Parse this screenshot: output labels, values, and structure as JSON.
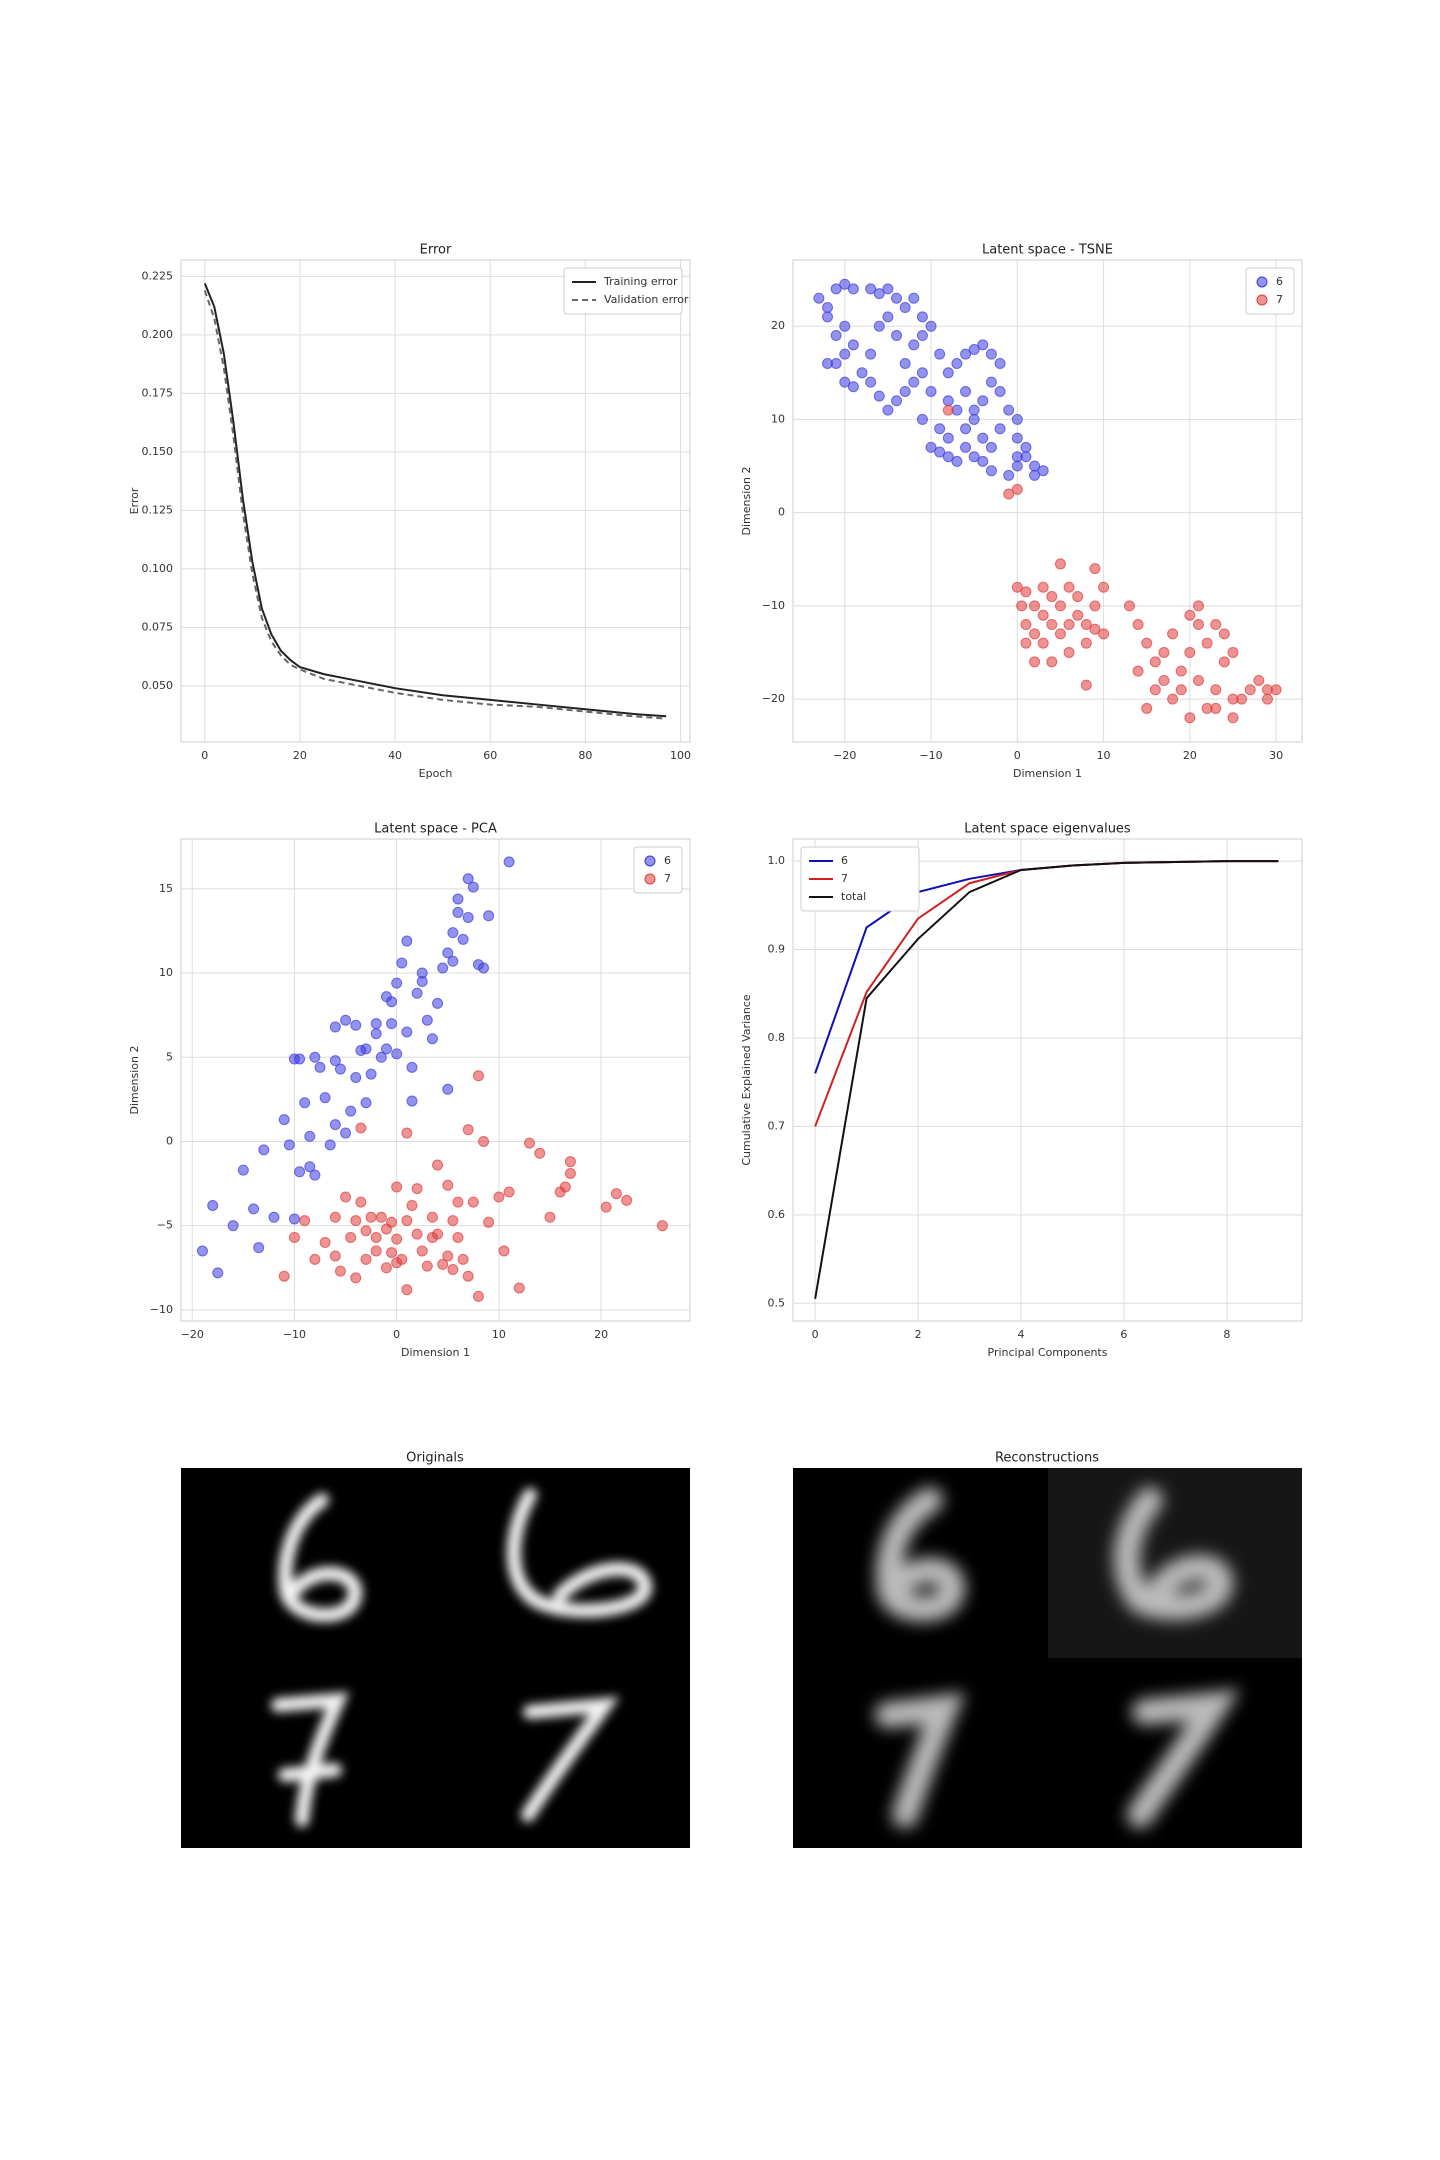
{
  "chart_data": [
    {
      "type": "line",
      "title": "Error",
      "xlabel": "Epoch",
      "ylabel": "Error",
      "x": [
        0,
        2,
        4,
        6,
        8,
        10,
        12,
        14,
        16,
        18,
        20,
        25,
        30,
        40,
        50,
        60,
        70,
        80,
        90,
        97
      ],
      "series": [
        {
          "name": "Training error",
          "color": "#222222",
          "linestyle": "solid",
          "values": [
            0.222,
            0.212,
            0.192,
            0.163,
            0.13,
            0.103,
            0.083,
            0.072,
            0.065,
            0.061,
            0.058,
            0.055,
            0.053,
            0.049,
            0.046,
            0.044,
            0.042,
            0.04,
            0.038,
            0.037
          ]
        },
        {
          "name": "Validation error",
          "color": "#666666",
          "linestyle": "dashed",
          "values": [
            0.219,
            0.207,
            0.186,
            0.157,
            0.124,
            0.098,
            0.079,
            0.069,
            0.063,
            0.059,
            0.057,
            0.053,
            0.051,
            0.047,
            0.044,
            0.042,
            0.041,
            0.039,
            0.037,
            0.036
          ]
        }
      ],
      "xlim": [
        -5,
        102
      ],
      "xticks": [
        0,
        20,
        40,
        60,
        80,
        100
      ],
      "ylim": [
        0.026,
        0.232
      ],
      "yticks": [
        {
          "value": 0.05,
          "label": "0.050"
        },
        0.075,
        {
          "value": 0.1,
          "label": "0.100"
        },
        0.125,
        {
          "value": 0.15,
          "label": "0.150"
        },
        0.175,
        {
          "value": 0.2,
          "label": "0.200"
        },
        0.225
      ],
      "grid": true,
      "legend": "upper right"
    },
    {
      "type": "scatter",
      "title": "Latent space - TSNE",
      "xlabel": "Dimension 1",
      "ylabel": "Dimension 2",
      "series": [
        {
          "name": "6",
          "color": "#3a3ae0",
          "x": [
            -23,
            -22,
            -21,
            -20,
            -19,
            -17,
            -16,
            -15,
            -14,
            -13,
            -12,
            -11,
            -22,
            -21,
            -20,
            -19,
            -21,
            -20,
            -22,
            -20,
            -19,
            -18,
            -17,
            -16,
            -15,
            -14,
            -13,
            -12,
            -11,
            -10,
            -9,
            -8,
            -10,
            -11,
            -12,
            -14,
            -15,
            -16,
            -17,
            -13,
            -7,
            -6,
            -5,
            -4,
            -3,
            -2,
            -3,
            -2,
            -4,
            -5,
            -6,
            -7,
            -8,
            -6,
            -5,
            -4,
            -3,
            -4,
            -5,
            -6,
            -8,
            -9,
            -10,
            -11,
            -7,
            -3,
            -1,
            0,
            0,
            1,
            2,
            2,
            3,
            -1,
            0,
            0,
            1,
            -2,
            -8,
            -9
          ],
          "values": [
            23,
            22,
            24,
            24.5,
            24,
            24,
            23.5,
            24,
            23,
            22,
            23,
            21,
            21,
            19,
            20,
            18,
            16,
            17,
            16,
            14,
            13.5,
            15,
            17,
            20,
            21,
            19,
            16,
            18,
            19,
            20,
            17,
            15,
            13,
            15,
            14,
            12,
            11,
            12.5,
            14,
            13,
            16,
            17,
            17.5,
            18,
            17,
            16,
            14,
            13,
            12,
            11,
            13,
            11,
            12,
            9,
            10,
            8,
            7,
            5.5,
            6,
            7,
            6,
            6.5,
            7,
            10,
            5.5,
            4.5,
            4,
            5,
            6,
            7,
            5,
            4,
            4.5,
            11,
            10,
            8,
            6,
            9,
            8,
            9
          ]
        },
        {
          "name": "7",
          "color": "#e03a3a",
          "x": [
            -8,
            -1,
            0,
            0,
            0.5,
            1,
            1,
            2,
            3,
            2,
            3,
            4,
            4,
            5,
            5,
            6,
            6,
            7,
            7,
            8,
            8,
            9,
            9,
            10,
            10,
            5,
            4,
            6,
            3,
            1,
            2,
            8,
            9,
            13,
            14,
            15,
            16,
            14,
            16,
            17,
            18,
            19,
            20,
            19,
            21,
            21,
            22,
            21,
            22,
            23,
            24,
            24,
            25,
            25,
            25,
            26,
            27,
            28,
            29,
            30,
            29,
            23,
            20,
            17,
            15,
            18,
            23,
            20
          ],
          "values": [
            11,
            2,
            2.5,
            -8,
            -10,
            -12,
            -8.5,
            -10,
            -11,
            -13,
            -14,
            -12,
            -9,
            -10,
            -13,
            -15,
            -8,
            -9,
            -11,
            -12,
            -14,
            -6,
            -10,
            -8,
            -13,
            -5.5,
            -16,
            -12,
            -8,
            -14,
            -16,
            -18.5,
            -12.5,
            -10,
            -12,
            -14,
            -16,
            -17,
            -19,
            -15,
            -13,
            -17,
            -15,
            -19,
            -10,
            -12,
            -14,
            -18,
            -21,
            -19,
            -13,
            -16,
            -15,
            -20,
            -22,
            -20,
            -19,
            -18,
            -19,
            -19,
            -20,
            -21,
            -11,
            -18,
            -21,
            -20,
            -12,
            -22
          ]
        }
      ],
      "xlim": [
        -26,
        33
      ],
      "xticks": [
        {
          "value": -20,
          "label": "−20"
        },
        {
          "value": -10,
          "label": "−10"
        },
        0,
        10,
        20,
        30
      ],
      "ylim": [
        -24.6,
        27.1
      ],
      "yticks": [
        {
          "value": -20,
          "label": "−20"
        },
        {
          "value": -10,
          "label": "−10"
        },
        0,
        10,
        20
      ],
      "grid": true,
      "legend": "upper right"
    },
    {
      "type": "scatter",
      "title": "Latent space - PCA",
      "xlabel": "Dimension 1",
      "ylabel": "Dimension 2",
      "series": [
        {
          "name": "6",
          "color": "#3a3ae0",
          "x": [
            -19,
            -18,
            -17.5,
            -16,
            -15,
            -14,
            -13.5,
            -13,
            -12,
            -11,
            -10.5,
            -10,
            -10,
            -9.5,
            -9,
            -8.5,
            -8,
            -7.5,
            -7,
            -6.5,
            -6,
            -6,
            -5.5,
            -5,
            -5,
            -4.5,
            -4,
            -4,
            -3.5,
            -3,
            -3,
            -2.5,
            -2,
            -2,
            -1.5,
            -1,
            -1,
            -0.5,
            -0.5,
            0,
            0,
            0.5,
            1,
            1,
            1.5,
            1.5,
            2,
            2.5,
            2.5,
            3,
            3.5,
            4,
            4.5,
            5,
            5,
            5.5,
            5.5,
            6,
            6,
            6.5,
            7,
            7,
            7.5,
            8,
            8.5,
            9,
            11,
            -8.5,
            -8,
            -9.5,
            -6
          ],
          "values": [
            -6.5,
            -3.8,
            -7.8,
            -5,
            -1.7,
            -4,
            -6.3,
            -0.5,
            -4.5,
            1.3,
            -0.2,
            -4.6,
            4.9,
            4.9,
            2.3,
            0.3,
            5,
            4.4,
            2.6,
            -0.2,
            4.8,
            6.8,
            4.3,
            7.2,
            0.5,
            1.8,
            3.8,
            6.9,
            5.4,
            5.5,
            2.3,
            4,
            6.4,
            7,
            5,
            5.5,
            8.6,
            7,
            8.3,
            5.2,
            9.4,
            10.6,
            11.9,
            6.5,
            4.4,
            2.4,
            8.8,
            10,
            9.5,
            7.2,
            6.1,
            8.2,
            10.3,
            11.2,
            3.1,
            12.4,
            10.7,
            13.6,
            14.4,
            12,
            15.6,
            13.3,
            15.1,
            10.5,
            10.3,
            13.4,
            16.6,
            -1.5,
            -2,
            -1.8,
            1
          ]
        },
        {
          "name": "7",
          "color": "#e03a3a",
          "x": [
            -11,
            -10,
            -9,
            -8,
            -7,
            -6,
            -6,
            -5.5,
            -5,
            -4.5,
            -4,
            -4,
            -3.5,
            -3,
            -3,
            -2.5,
            -2,
            -2,
            -1.5,
            -1,
            -1,
            -0.5,
            0,
            0,
            0,
            0.5,
            1,
            1,
            1.5,
            2,
            2,
            2.5,
            3,
            3.5,
            4,
            4,
            4.5,
            5,
            5,
            5.5,
            6,
            6,
            6.5,
            7,
            7.5,
            8,
            8,
            8.5,
            9,
            10,
            10.5,
            11,
            12,
            13,
            14,
            15,
            16,
            16.5,
            17,
            17,
            20.5,
            21.5,
            22.5,
            26,
            7,
            -0.5,
            3.5,
            5.5,
            -3.5,
            1
          ],
          "values": [
            -8,
            -5.7,
            -4.7,
            -7,
            -6,
            -4.5,
            -6.8,
            -7.7,
            -3.3,
            -5.7,
            -4.7,
            -8.1,
            -3.6,
            -5.3,
            -7,
            -4.5,
            -6.5,
            -5.7,
            -4.5,
            -5.2,
            -7.5,
            -6.6,
            -2.7,
            -5.8,
            -7.2,
            -7,
            0.5,
            -4.7,
            -3.8,
            -2.8,
            -5.5,
            -6.5,
            -7.4,
            -4.5,
            -1.4,
            -5.5,
            -7.3,
            -2.6,
            -6.8,
            -7.6,
            -5.7,
            -3.6,
            -7,
            -8,
            -3.6,
            3.9,
            -9.2,
            0,
            -4.8,
            -3.3,
            -6.5,
            -3,
            -8.7,
            -0.1,
            -0.7,
            -4.5,
            -3,
            -2.7,
            -1.2,
            -1.9,
            -3.9,
            -3.1,
            -3.5,
            -5,
            0.7,
            -4.8,
            -5.7,
            -4.7,
            0.8,
            -8.8
          ]
        }
      ],
      "xlim": [
        -21.1,
        28.7
      ],
      "xticks": [
        {
          "value": -20,
          "label": "−20"
        },
        {
          "value": -10,
          "label": "−10"
        },
        0,
        10,
        20
      ],
      "ylim": [
        -10.66,
        17.96
      ],
      "yticks": [
        {
          "value": -10,
          "label": "−10"
        },
        {
          "value": -5,
          "label": "−5"
        },
        0,
        5,
        10,
        15
      ],
      "grid": true,
      "legend": "upper right"
    },
    {
      "type": "line",
      "title": "Latent space eigenvalues",
      "xlabel": "Principal Components",
      "ylabel": "Cumulative Explained Variance",
      "x": [
        0,
        1,
        2,
        3,
        4,
        5,
        6,
        7,
        8,
        9
      ],
      "series": [
        {
          "name": "6",
          "color": "#1010b0",
          "linestyle": "solid",
          "values": [
            0.76,
            0.925,
            0.965,
            0.98,
            0.99,
            0.995,
            0.998,
            0.999,
            1,
            1
          ]
        },
        {
          "name": "7",
          "color": "#d02020",
          "linestyle": "solid",
          "values": [
            0.7,
            0.852,
            0.935,
            0.975,
            0.99,
            0.995,
            0.998,
            0.999,
            1,
            1
          ]
        },
        {
          "name": "total",
          "color": "#111111",
          "linestyle": "solid",
          "values": [
            0.505,
            0.845,
            0.912,
            0.965,
            0.99,
            0.995,
            0.998,
            0.999,
            1,
            1
          ]
        }
      ],
      "xlim": [
        -0.43,
        9.46
      ],
      "xticks": [
        0,
        2,
        4,
        6,
        8
      ],
      "ylim": [
        0.48,
        1.025
      ],
      "yticks": [
        0.5,
        0.6,
        0.7,
        0.8,
        0.9,
        {
          "value": 1,
          "label": "1.0"
        }
      ],
      "grid": true,
      "legend": "upper left"
    }
  ],
  "images": [
    {
      "title": "Originals"
    },
    {
      "title": "Reconstructions"
    }
  ]
}
